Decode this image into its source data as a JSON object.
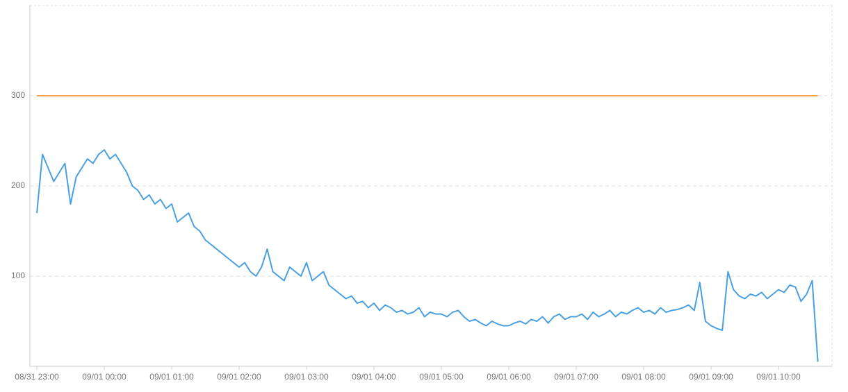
{
  "chart_data": {
    "type": "line",
    "categories": [
      "08/31 23:00",
      null,
      null,
      null,
      null,
      null,
      null,
      null,
      null,
      null,
      null,
      null,
      "09/01 00:00",
      null,
      null,
      null,
      null,
      null,
      null,
      null,
      null,
      null,
      null,
      null,
      "09/01 01:00",
      null,
      null,
      null,
      null,
      null,
      null,
      null,
      null,
      null,
      null,
      null,
      "09/01 02:00",
      null,
      null,
      null,
      null,
      null,
      null,
      null,
      null,
      null,
      null,
      null,
      "09/01 03:00",
      null,
      null,
      null,
      null,
      null,
      null,
      null,
      null,
      null,
      null,
      null,
      "09/01 04:00",
      null,
      null,
      null,
      null,
      null,
      null,
      null,
      null,
      null,
      null,
      null,
      "09/01 05:00",
      null,
      null,
      null,
      null,
      null,
      null,
      null,
      null,
      null,
      null,
      null,
      "09/01 06:00",
      null,
      null,
      null,
      null,
      null,
      null,
      null,
      null,
      null,
      null,
      null,
      "09/01 07:00",
      null,
      null,
      null,
      null,
      null,
      null,
      null,
      null,
      null,
      null,
      null,
      "09/01 08:00",
      null,
      null,
      null,
      null,
      null,
      null,
      null,
      null,
      null,
      null,
      null,
      "09/01 09:00",
      null,
      null,
      null,
      null,
      null,
      null,
      null,
      null,
      null,
      null,
      null,
      "09/01 10:00",
      null,
      null,
      null,
      null,
      null,
      null,
      null
    ],
    "series": [
      {
        "color": "#4a9fe0",
        "values": [
          170,
          235,
          220,
          205,
          215,
          225,
          180,
          210,
          220,
          230,
          225,
          235,
          240,
          230,
          235,
          225,
          215,
          200,
          195,
          185,
          190,
          180,
          185,
          175,
          180,
          160,
          165,
          170,
          155,
          150,
          140,
          135,
          130,
          125,
          120,
          115,
          110,
          115,
          105,
          100,
          110,
          130,
          105,
          100,
          95,
          110,
          105,
          100,
          115,
          95,
          100,
          105,
          90,
          85,
          80,
          75,
          78,
          70,
          72,
          65,
          70,
          62,
          68,
          65,
          60,
          62,
          58,
          60,
          65,
          55,
          60,
          58,
          58,
          55,
          60,
          62,
          55,
          50,
          52,
          48,
          45,
          50,
          47,
          45,
          45,
          48,
          50,
          47,
          52,
          50,
          55,
          48,
          55,
          58,
          52,
          55,
          55,
          58,
          52,
          60,
          55,
          58,
          62,
          55,
          60,
          58,
          62,
          65,
          60,
          62,
          58,
          65,
          60,
          62,
          63,
          65,
          68,
          62,
          93,
          50,
          45,
          42,
          40,
          105,
          85,
          78,
          75,
          80,
          78,
          82,
          75,
          80,
          85,
          82,
          90,
          88,
          72,
          80,
          95,
          5
        ]
      },
      {
        "color": "#f5a04a",
        "values": [
          300,
          300,
          300,
          300,
          300,
          300,
          300,
          300,
          300,
          300,
          300,
          300,
          300,
          300,
          300,
          300,
          300,
          300,
          300,
          300,
          300,
          300,
          300,
          300,
          300,
          300,
          300,
          300,
          300,
          300,
          300,
          300,
          300,
          300,
          300,
          300,
          300,
          300,
          300,
          300,
          300,
          300,
          300,
          300,
          300,
          300,
          300,
          300,
          300,
          300,
          300,
          300,
          300,
          300,
          300,
          300,
          300,
          300,
          300,
          300,
          300,
          300,
          300,
          300,
          300,
          300,
          300,
          300,
          300,
          300,
          300,
          300,
          300,
          300,
          300,
          300,
          300,
          300,
          300,
          300,
          300,
          300,
          300,
          300,
          300,
          300,
          300,
          300,
          300,
          300,
          300,
          300,
          300,
          300,
          300,
          300,
          300,
          300,
          300,
          300,
          300,
          300,
          300,
          300,
          300,
          300,
          300,
          300,
          300,
          300,
          300,
          300,
          300,
          300,
          300,
          300,
          300,
          300,
          300,
          300,
          300,
          300,
          300,
          300,
          300,
          300,
          300,
          300,
          300,
          300,
          300,
          300,
          300,
          300,
          300,
          300,
          300,
          300,
          300,
          300
        ]
      }
    ],
    "ylim": [
      0,
      400
    ],
    "yticks": [
      100,
      200,
      300
    ],
    "grid": true
  }
}
